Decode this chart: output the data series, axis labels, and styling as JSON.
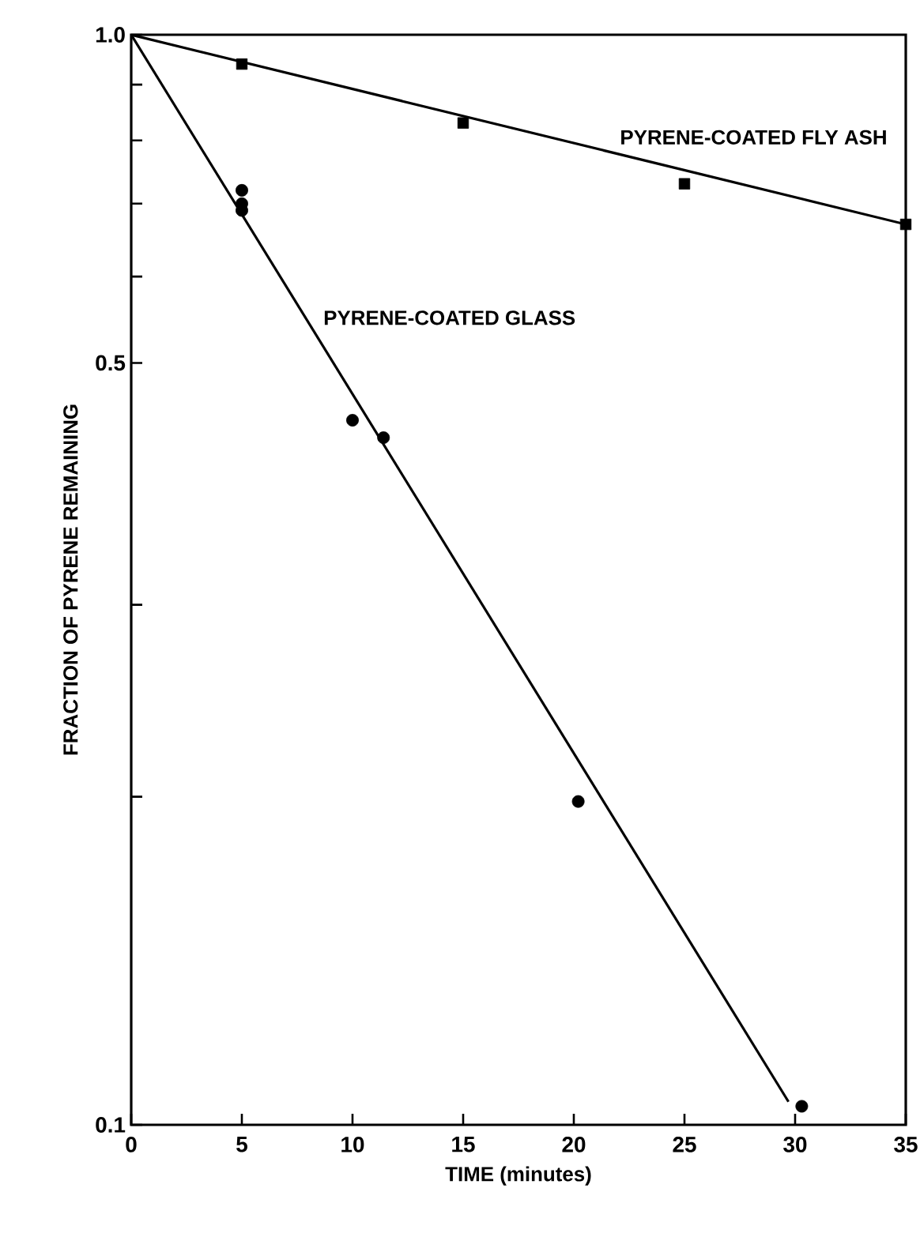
{
  "chart_data": {
    "type": "scatter",
    "xlabel": "TIME (minutes)",
    "ylabel": "FRACTION OF PYRENE REMAINING",
    "log": "y",
    "xlim": [
      0,
      35
    ],
    "xticks": [
      0,
      5,
      10,
      15,
      20,
      25,
      30,
      35
    ],
    "ylim": [
      0.1,
      1.0
    ],
    "yticks": [
      {
        "value": 1.0,
        "label": "1.0"
      },
      {
        "value": 0.9,
        "label": null
      },
      {
        "value": 0.8,
        "label": null
      },
      {
        "value": 0.7,
        "label": null
      },
      {
        "value": 0.6,
        "label": null
      },
      0.5,
      {
        "value": 0.3,
        "label": null
      },
      {
        "value": 0.2,
        "label": null
      },
      0.1
    ],
    "series": [
      {
        "color": "#000000",
        "marker": "square",
        "x": [
          5,
          15,
          25,
          35
        ],
        "values": [
          0.94,
          0.83,
          0.73,
          0.67
        ]
      },
      {
        "type": "line",
        "name": "PYRENE-COATED FLY ASH",
        "color": "#000000",
        "marker": "none",
        "line_style": "solid",
        "x": [
          0,
          35
        ],
        "values": [
          1.0,
          0.67
        ]
      },
      {
        "color": "#000000",
        "marker": "circle",
        "x": [
          5,
          5,
          5,
          10,
          11.4,
          20.2,
          30.3
        ],
        "values": [
          0.72,
          0.7,
          0.69,
          0.443,
          0.427,
          0.198,
          0.104
        ]
      },
      {
        "type": "line",
        "name": "PYRENE-COATED GLASS",
        "color": "#000000",
        "marker": "none",
        "line_style": "solid",
        "x": [
          0,
          29.7
        ],
        "values": [
          1.0,
          0.105
        ]
      }
    ]
  }
}
